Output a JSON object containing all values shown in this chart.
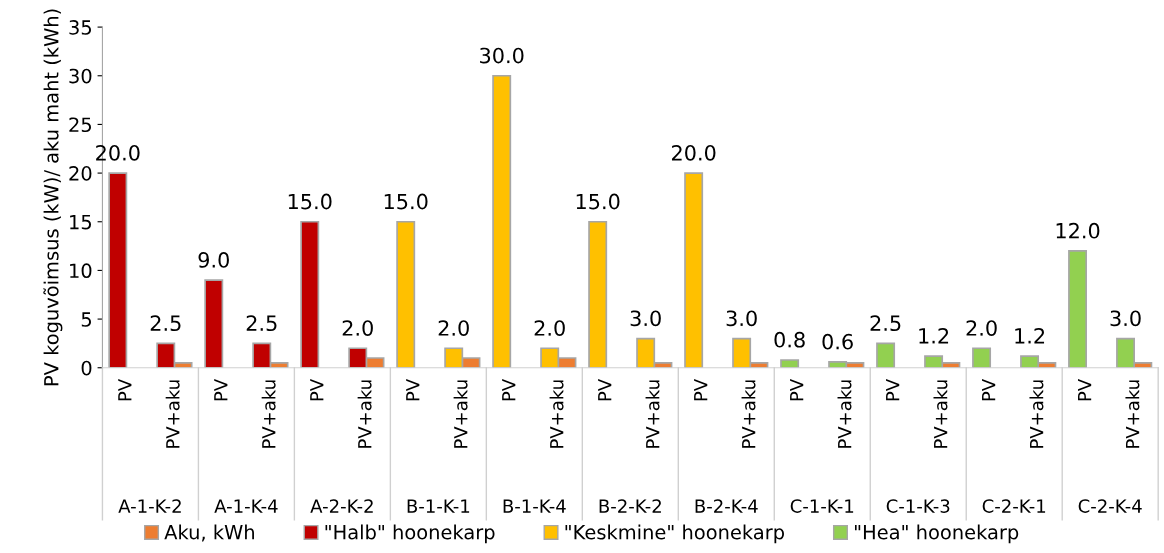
{
  "chart_data": {
    "type": "bar",
    "ylabel": "PV koguvõimsus (kW)/ aku maht (kWh)",
    "categories": [
      "PV",
      "PV+aku",
      "PV",
      "PV+aku",
      "PV",
      "PV+aku",
      "PV",
      "PV+aku",
      "PV",
      "PV+aku",
      "PV",
      "PV+aku",
      "PV",
      "PV+aku",
      "PV",
      "PV+aku",
      "PV",
      "PV+aku",
      "PV",
      "PV+aku",
      "PV",
      "PV+aku"
    ],
    "annotations": [
      "A-1-K-2",
      "A-1-K-4",
      "A-2-K-2",
      "B-1-K-1",
      "B-1-K-4",
      "B-2-K-2",
      "B-2-K-4",
      "C-1-K-1",
      "C-1-K-3",
      "C-2-K-1",
      "C-2-K-4"
    ],
    "series": [
      {
        "name": "Aku, kWh",
        "color": "#ed7d31",
        "values": [
          null,
          0.5,
          null,
          0.5,
          null,
          1.0,
          null,
          1.0,
          null,
          1.0,
          null,
          0.5,
          null,
          0.5,
          null,
          0.5,
          null,
          0.5,
          null,
          0.5,
          null,
          0.5
        ]
      },
      {
        "name": "\"Halb\" hoonekarp",
        "color": "#c00000",
        "values": [
          20.0,
          2.5,
          9.0,
          2.5,
          15.0,
          2.0,
          null,
          null,
          null,
          null,
          null,
          null,
          null,
          null,
          null,
          null,
          null,
          null,
          null,
          null,
          null,
          null
        ],
        "value_labels": [
          "20.0",
          "2.5",
          "9.0",
          "2.5",
          "15.0",
          "2.0",
          null,
          null,
          null,
          null,
          null,
          null,
          null,
          null,
          null,
          null,
          null,
          null,
          null,
          null,
          null,
          null
        ]
      },
      {
        "name": "\"Keskmine\" hoonekarp",
        "color": "#ffc000",
        "values": [
          null,
          null,
          null,
          null,
          null,
          null,
          15.0,
          2.0,
          30.0,
          2.0,
          15.0,
          3.0,
          20.0,
          3.0,
          null,
          null,
          null,
          null,
          null,
          null,
          null,
          null
        ],
        "value_labels": [
          null,
          null,
          null,
          null,
          null,
          null,
          "15.0",
          "2.0",
          "30.0",
          "2.0",
          "15.0",
          "3.0",
          "20.0",
          "3.0",
          null,
          null,
          null,
          null,
          null,
          null,
          null,
          null
        ]
      },
      {
        "name": "\"Hea\" hoonekarp",
        "color": "#92d050",
        "values": [
          null,
          null,
          null,
          null,
          null,
          null,
          null,
          null,
          null,
          null,
          null,
          null,
          null,
          null,
          0.8,
          0.6,
          2.5,
          1.2,
          2.0,
          1.2,
          12.0,
          3.0
        ],
        "value_labels": [
          null,
          null,
          null,
          null,
          null,
          null,
          null,
          null,
          null,
          null,
          null,
          null,
          null,
          null,
          "0.8",
          "0.6",
          "2.5",
          "1.2",
          "2.0",
          "1.2",
          "12.0",
          "3.0"
        ]
      }
    ],
    "ylim": [
      0,
      35
    ],
    "yticks": [
      0,
      5,
      10,
      15,
      20,
      25,
      30,
      35
    ],
    "grid": false,
    "legend": "bottom"
  }
}
